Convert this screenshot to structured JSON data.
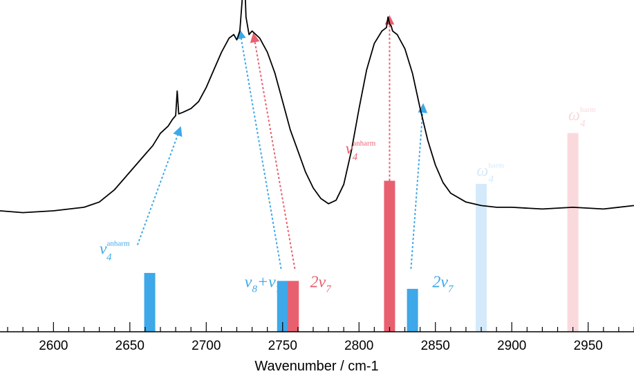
{
  "chart_data": {
    "type": "line",
    "xlabel": "Wavenumber / cm-1",
    "xlim": [
      2565,
      2980
    ],
    "x_ticks": [
      2600,
      2650,
      2700,
      2750,
      2800,
      2850,
      2900,
      2950
    ],
    "colors": {
      "blue": "#3ea8e8",
      "red": "#e8606f",
      "light_blue": "#d4eafa",
      "light_pink": "#fad9dd",
      "spectrum": "#000000"
    },
    "spectrum": {
      "x": [
        2565,
        2580,
        2600,
        2620,
        2630,
        2640,
        2650,
        2660,
        2665,
        2670,
        2675,
        2678,
        2680,
        2681,
        2682,
        2685,
        2690,
        2695,
        2700,
        2705,
        2710,
        2715,
        2718,
        2720,
        2722,
        2724,
        2725,
        2726,
        2728,
        2730,
        2735,
        2740,
        2745,
        2750,
        2755,
        2760,
        2765,
        2770,
        2775,
        2780,
        2785,
        2790,
        2795,
        2800,
        2805,
        2810,
        2815,
        2818,
        2819,
        2820,
        2821,
        2822,
        2825,
        2830,
        2835,
        2840,
        2845,
        2850,
        2855,
        2860,
        2870,
        2880,
        2890,
        2900,
        2920,
        2940,
        2960,
        2980
      ],
      "y": [
        0.0,
        -0.01,
        0.0,
        0.02,
        0.05,
        0.12,
        0.22,
        0.32,
        0.37,
        0.44,
        0.48,
        0.52,
        0.54,
        0.68,
        0.55,
        0.56,
        0.58,
        0.62,
        0.7,
        0.8,
        0.9,
        0.98,
        1.0,
        0.97,
        1.02,
        1.25,
        1.36,
        1.1,
        1.0,
        1.02,
        0.98,
        0.9,
        0.78,
        0.62,
        0.46,
        0.34,
        0.22,
        0.13,
        0.07,
        0.04,
        0.06,
        0.15,
        0.34,
        0.58,
        0.8,
        0.95,
        1.02,
        1.04,
        1.1,
        1.06,
        1.05,
        1.02,
        1.0,
        0.92,
        0.78,
        0.58,
        0.4,
        0.26,
        0.16,
        0.1,
        0.05,
        0.03,
        0.02,
        0.02,
        0.01,
        0.02,
        0.01,
        0.03
      ]
    },
    "bars": [
      {
        "x": 2663,
        "height": 0.37,
        "color": "blue"
      },
      {
        "x": 2750,
        "height": 0.32,
        "color": "blue"
      },
      {
        "x": 2757,
        "height": 0.32,
        "color": "red"
      },
      {
        "x": 2820,
        "height": 0.95,
        "color": "red"
      },
      {
        "x": 2835,
        "height": 0.27,
        "color": "blue"
      },
      {
        "x": 2880,
        "height": 0.93,
        "color": "light_blue"
      },
      {
        "x": 2940,
        "height": 1.25,
        "color": "light_pink"
      }
    ],
    "arrows": [
      {
        "from": [
          2655,
          0.52
        ],
        "to": [
          2683,
          0.47
        ],
        "color": "blue"
      },
      {
        "from": [
          2749,
          0.37
        ],
        "to": [
          2722,
          1.02
        ],
        "color": "blue"
      },
      {
        "from": [
          2758,
          0.37
        ],
        "to": [
          2731,
          1.0
        ],
        "color": "red"
      },
      {
        "from": [
          2820,
          1.02
        ],
        "to": [
          2820,
          1.1
        ],
        "color": "red"
      },
      {
        "from": [
          2834,
          0.37
        ],
        "to": [
          2842,
          0.6
        ],
        "color": "blue"
      }
    ],
    "annotations": [
      {
        "main": "ν",
        "sub": "4",
        "sup": "anharm",
        "color": "blue",
        "x": 2640,
        "y": 0.49
      },
      {
        "main": "ν",
        "sub": "8",
        "extra": "+ν",
        "sub2": "7",
        "color": "blue",
        "x": 2737,
        "y": 0.28
      },
      {
        "main": "2ν",
        "sub": "7",
        "color": "red",
        "x": 2768,
        "y": 0.28
      },
      {
        "main": "ν",
        "sub": "4",
        "sup": "anharm",
        "color": "red",
        "x": 2801,
        "y": 1.12
      },
      {
        "main": "2ν",
        "sub": "7",
        "color": "blue",
        "x": 2848,
        "y": 0.28
      },
      {
        "main": "ω",
        "sub": "4",
        "sup": "harm",
        "color": "light_blue",
        "x": 2877,
        "y": 0.98
      },
      {
        "main": "ω",
        "sub": "4",
        "sup": "harm",
        "color": "light_pink",
        "x": 2937,
        "y": 1.33
      }
    ]
  }
}
